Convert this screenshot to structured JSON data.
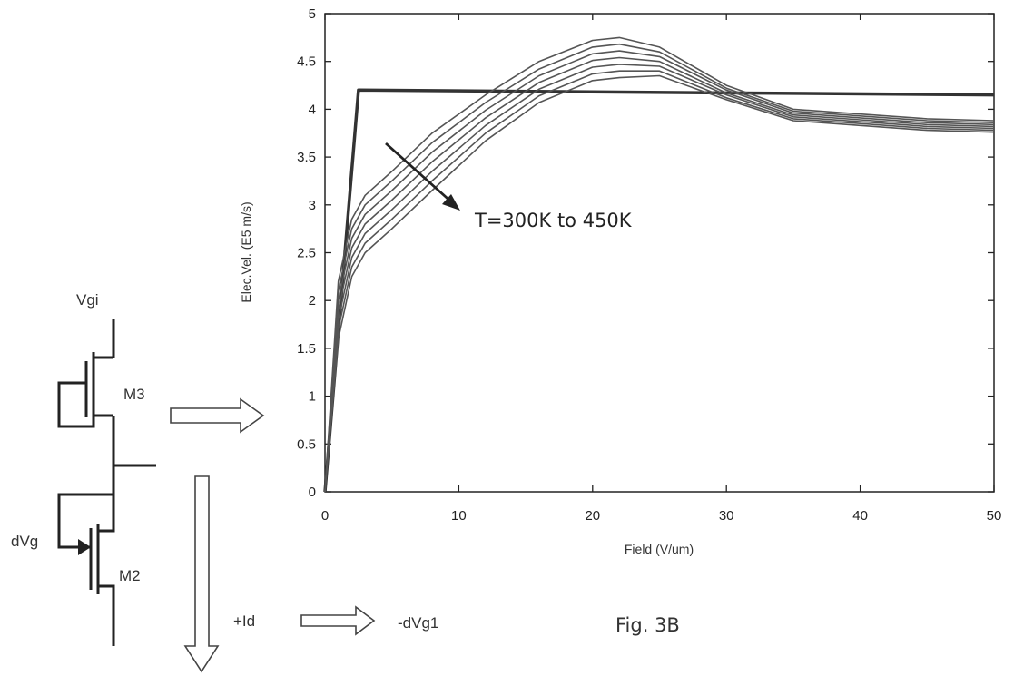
{
  "circuit": {
    "top_label": "Vgi",
    "m3_label": "M3",
    "m2_label": "M2",
    "dvg_label": "dVg",
    "id_label": "+Id",
    "dvg1_label": "-dVg1"
  },
  "figure_caption": "Fig. 3B",
  "chart_data": {
    "type": "line",
    "xlabel": "Field (V/um)",
    "ylabel": "Elec.Vel. (E5 m/s)",
    "xlim": [
      0,
      50
    ],
    "ylim": [
      0,
      5
    ],
    "xticks": [
      "0",
      "10",
      "20",
      "30",
      "40",
      "50"
    ],
    "yticks": [
      "0",
      "0.5",
      "1",
      "1.5",
      "2",
      "2.5",
      "3",
      "3.5",
      "4",
      "4.5",
      "5"
    ],
    "grid": false,
    "annotation": "T=300K to 450K",
    "series": [
      {
        "x": [
          0,
          2.5,
          50
        ],
        "y": [
          0,
          4.2,
          4.15
        ]
      },
      {
        "x": [
          0,
          1,
          2,
          3,
          5,
          8,
          12,
          16,
          20,
          22,
          25,
          30,
          35,
          40,
          45,
          50
        ],
        "y": [
          0,
          2.2,
          2.85,
          3.1,
          3.35,
          3.75,
          4.15,
          4.5,
          4.72,
          4.75,
          4.65,
          4.25,
          4.0,
          3.95,
          3.9,
          3.88
        ]
      },
      {
        "x": [
          0,
          1,
          2,
          3,
          5,
          8,
          12,
          16,
          20,
          22,
          25,
          30,
          35,
          40,
          45,
          50
        ],
        "y": [
          0,
          2.1,
          2.75,
          3.0,
          3.25,
          3.65,
          4.07,
          4.42,
          4.65,
          4.68,
          4.6,
          4.22,
          3.98,
          3.93,
          3.88,
          3.86
        ]
      },
      {
        "x": [
          0,
          1,
          2,
          3,
          5,
          8,
          12,
          16,
          20,
          22,
          25,
          30,
          35,
          40,
          45,
          50
        ],
        "y": [
          0,
          2.0,
          2.65,
          2.9,
          3.15,
          3.55,
          3.99,
          4.35,
          4.58,
          4.61,
          4.55,
          4.2,
          3.96,
          3.91,
          3.86,
          3.84
        ]
      },
      {
        "x": [
          0,
          1,
          2,
          3,
          5,
          8,
          12,
          16,
          20,
          22,
          25,
          30,
          35,
          40,
          45,
          50
        ],
        "y": [
          0,
          1.9,
          2.55,
          2.8,
          3.05,
          3.45,
          3.91,
          4.28,
          4.51,
          4.54,
          4.5,
          4.17,
          3.94,
          3.89,
          3.84,
          3.82
        ]
      },
      {
        "x": [
          0,
          1,
          2,
          3,
          5,
          8,
          12,
          16,
          20,
          22,
          25,
          30,
          35,
          40,
          45,
          50
        ],
        "y": [
          0,
          1.8,
          2.45,
          2.7,
          2.95,
          3.35,
          3.83,
          4.21,
          4.44,
          4.47,
          4.45,
          4.15,
          3.92,
          3.87,
          3.82,
          3.8
        ]
      },
      {
        "x": [
          0,
          1,
          2,
          3,
          5,
          8,
          12,
          16,
          20,
          22,
          25,
          30,
          35,
          40,
          45,
          50
        ],
        "y": [
          0,
          1.7,
          2.35,
          2.6,
          2.85,
          3.25,
          3.75,
          4.14,
          4.37,
          4.4,
          4.4,
          4.12,
          3.9,
          3.85,
          3.8,
          3.78
        ]
      },
      {
        "x": [
          0,
          1,
          2,
          3,
          5,
          8,
          12,
          16,
          20,
          22,
          25,
          30,
          35,
          40,
          45,
          50
        ],
        "y": [
          0,
          1.6,
          2.25,
          2.5,
          2.75,
          3.15,
          3.67,
          4.07,
          4.3,
          4.33,
          4.35,
          4.1,
          3.88,
          3.83,
          3.78,
          3.76
        ]
      }
    ]
  }
}
